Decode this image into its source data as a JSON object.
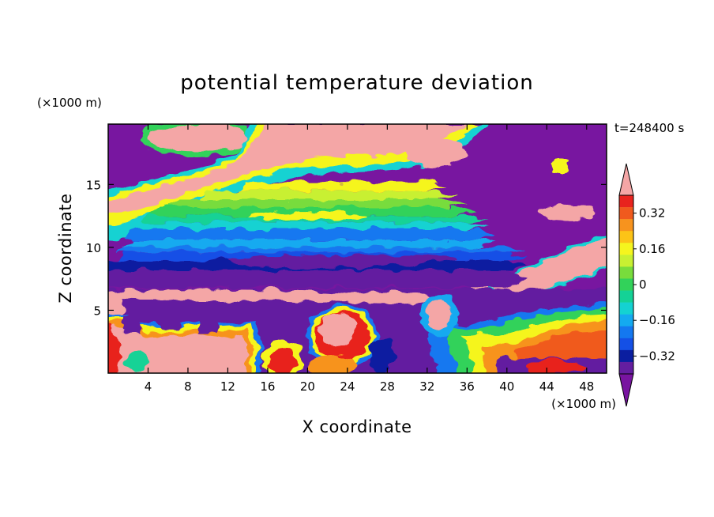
{
  "chart_data": {
    "type": "heatmap",
    "title": "potential temperature deviation",
    "xlabel": "X coordinate",
    "ylabel": "Z coordinate",
    "x_unit": "(×1000 m)",
    "y_unit": "(×1000 m)",
    "time_label": "t=248400 s",
    "xlim": [
      0,
      50
    ],
    "ylim": [
      0,
      19.8
    ],
    "x_ticks": [
      "4",
      "8",
      "12",
      "16",
      "20",
      "24",
      "28",
      "32",
      "36",
      "40",
      "44",
      "48"
    ],
    "x_tick_values": [
      4,
      8,
      12,
      16,
      20,
      24,
      28,
      32,
      36,
      40,
      44,
      48
    ],
    "y_ticks": [
      "5",
      "10",
      "15"
    ],
    "y_tick_values": [
      5,
      10,
      15
    ],
    "colorbar": {
      "labels": [
        "0.32",
        "0.16",
        "0",
        "−0.16",
        "−0.32"
      ],
      "label_values": [
        0.32,
        0.16,
        0,
        -0.16,
        -0.32
      ],
      "levels": [
        0.4,
        0.36,
        0.32,
        0.28,
        0.24,
        0.2,
        0.16,
        0.12,
        0.08,
        0.04,
        0,
        -0.04,
        -0.08,
        -0.12,
        -0.16,
        -0.2,
        -0.24,
        -0.28,
        -0.32,
        -0.36,
        -0.4
      ],
      "colors_top_to_bottom": [
        "#f4a6a6",
        "#e8231e",
        "#f05a1e",
        "#f7931e",
        "#fcc317",
        "#f5f51e",
        "#c8f032",
        "#78dc3c",
        "#32d25a",
        "#14d296",
        "#14d2d2",
        "#14aaf0",
        "#1478f0",
        "#1450e6",
        "#0a1ea0",
        "#641ea0",
        "#7814a0"
      ]
    },
    "bands": [
      {
        "z_range": [
          0,
          4.5
        ],
        "description": "lower layer: pink/orange/red anomalies mixed with purple"
      },
      {
        "z_range": [
          6.5,
          8.2
        ],
        "value": -0.36,
        "color": "#641ea0"
      },
      {
        "z_range": [
          8.2,
          9
        ],
        "value": -0.3,
        "color": "#0a1ea0"
      },
      {
        "z_range": [
          9,
          11.5
        ],
        "value": -0.18,
        "color": "#1478f0"
      },
      {
        "z_range": [
          11.5,
          13.5
        ],
        "value": 0.05,
        "color": "#32d25a"
      },
      {
        "z_range": [
          13.5,
          15.5
        ],
        "value": 0.2,
        "color": "#f5f51e"
      },
      {
        "z_range": [
          15.5,
          19.8
        ],
        "description": "upper layer: pink positive regions and purple negative regions"
      }
    ]
  }
}
